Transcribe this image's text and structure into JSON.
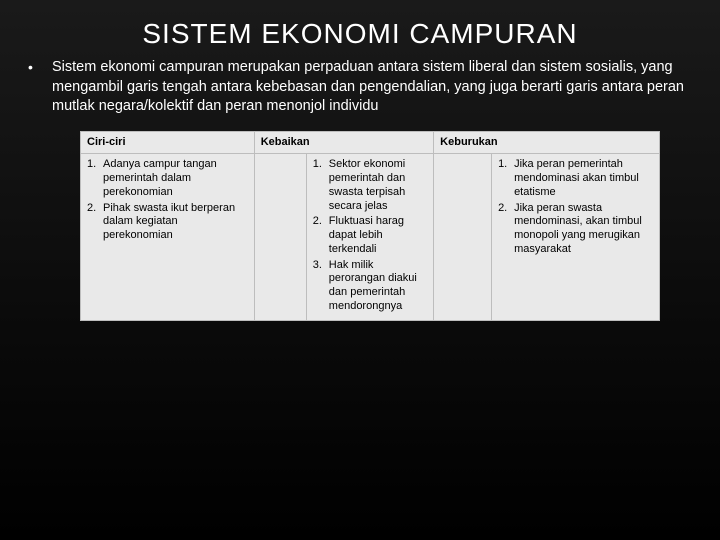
{
  "title": "SISTEM EKONOMI CAMPURAN",
  "bullet": "•",
  "description": "Sistem ekonomi campuran merupakan perpaduan antara sistem liberal dan sistem sosialis, yang mengambil garis tengah antara kebebasan dan pengendalian, yang juga berarti garis antara peran mutlak negara/kolektif dan peran menonjol individu",
  "table": {
    "headers": {
      "col1": "Ciri-ciri",
      "col2": "Kebaikan",
      "col3": "Keburukan"
    },
    "ciri": [
      {
        "n": "1.",
        "t": "Adanya campur tangan pemerintah dalam perekonomian"
      },
      {
        "n": "2.",
        "t": "Pihak swasta ikut berperan dalam kegiatan perekonomian"
      }
    ],
    "kebaikan": [
      {
        "n": "1.",
        "t": "Sektor ekonomi pemerintah dan swasta terpisah secara jelas"
      },
      {
        "n": "2.",
        "t": "Fluktuasi harag dapat lebih terkendali"
      },
      {
        "n": "3.",
        "t": "Hak milik perorangan diakui dan pemerintah mendorongnya"
      }
    ],
    "keburukan": [
      {
        "n": "1.",
        "t": "Jika peran pemerintah mendominasi akan timbul etatisme"
      },
      {
        "n": "2.",
        "t": "Jika peran swasta mendominasi, akan timbul monopoli yang merugikan masyarakat"
      }
    ]
  },
  "colors": {
    "bg_top": "#1a1a1a",
    "bg_bottom": "#000000",
    "table_bg": "#e9e9e9",
    "table_border": "#bdbdbd",
    "text_light": "#ffffff",
    "text_dark": "#000000"
  }
}
